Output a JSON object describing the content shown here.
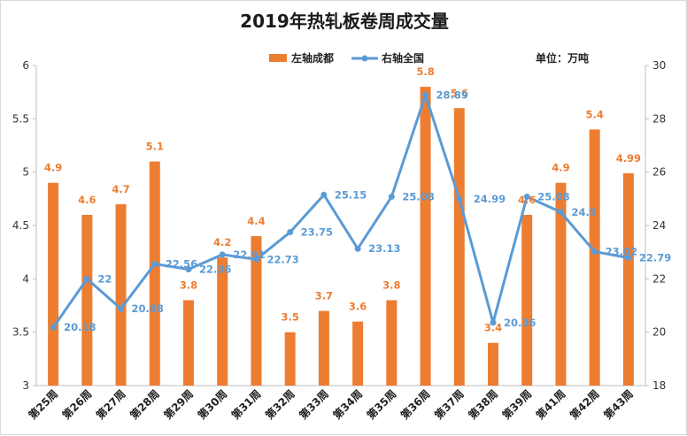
{
  "chart_data": {
    "type": "bar+line",
    "title": "2019年热轧板卷周成交量",
    "unit_label": "单位：万吨",
    "categories": [
      "第25周",
      "第26周",
      "第27周",
      "第28周",
      "第29周",
      "第30周",
      "第31周",
      "第32周",
      "第33周",
      "第34周",
      "第35周",
      "第36周",
      "第37周",
      "第38周",
      "第39周",
      "第41周",
      "第42周",
      "第43周"
    ],
    "series": [
      {
        "name": "左轴成都",
        "type": "bar",
        "axis": "left",
        "color": "#ED7D31",
        "values": [
          4.9,
          4.6,
          4.7,
          5.1,
          3.8,
          4.2,
          4.4,
          3.5,
          3.7,
          3.6,
          3.8,
          5.8,
          5.6,
          3.4,
          4.6,
          4.9,
          5.4,
          4.99
        ],
        "labels": [
          "4.9",
          "4.6",
          "4.7",
          "5.1",
          "3.8",
          "4.2",
          "4.4",
          "3.5",
          "3.7",
          "3.6",
          "3.8",
          "5.8",
          "5.6",
          "3.4",
          "4.6",
          "4.9",
          "5.4",
          "4.99"
        ]
      },
      {
        "name": "右轴全国",
        "type": "line",
        "axis": "right",
        "color": "#5B9BD5",
        "values": [
          20.18,
          22,
          20.88,
          22.56,
          22.36,
          22.91,
          22.73,
          23.75,
          25.15,
          23.13,
          25.08,
          28.89,
          25,
          20.36,
          25.08,
          24.5,
          23.02,
          22.79
        ],
        "labels": [
          "20.18",
          "22",
          "20.88",
          "22.56",
          "22.36",
          "22.91",
          "22.73",
          "23.75",
          "25.15",
          "23.13",
          "25.08",
          "28.89",
          "",
          "20.36",
          "25.08",
          "24.5",
          "23.02",
          "22.79"
        ]
      }
    ],
    "left_axis": {
      "min": 3,
      "max": 6,
      "ticks": [
        "3",
        "3.5",
        "4",
        "4.5",
        "5",
        "5.5",
        "6"
      ]
    },
    "right_axis": {
      "min": 18,
      "max": 30,
      "ticks": [
        "18",
        "20",
        "22",
        "24",
        "26",
        "28",
        "30"
      ]
    },
    "annotations": [
      "24.99"
    ],
    "legend_position": "top",
    "grid": false
  }
}
